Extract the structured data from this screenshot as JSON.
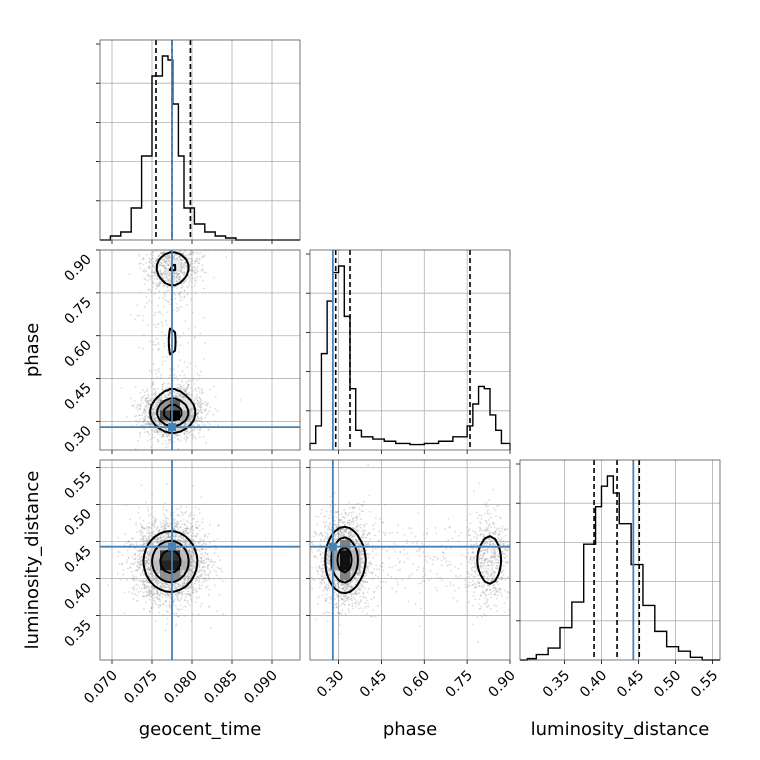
{
  "chart_data": {
    "type": "corner",
    "parameters": [
      {
        "name": "geocent_time",
        "label": "geocent_time",
        "range": [
          0.0685,
          0.0935
        ],
        "ticks": [
          0.07,
          0.075,
          0.08,
          0.085,
          0.09
        ],
        "tick_labels": [
          "0.070",
          "0.075",
          "0.080",
          "0.085",
          "0.090"
        ],
        "truth": 0.0775,
        "quantiles": [
          0.0755,
          0.0775,
          0.0798
        ],
        "histogram": {
          "bin_edges": [
            0.0685,
            0.0698,
            0.0711,
            0.0724,
            0.0737,
            0.075,
            0.0763,
            0.077,
            0.0776,
            0.0783,
            0.079,
            0.0803,
            0.0816,
            0.0829,
            0.0842,
            0.0855,
            0.0868,
            0.0935
          ],
          "counts": [
            0,
            1,
            2,
            8,
            21,
            41,
            46,
            45,
            34,
            21,
            8,
            4,
            2,
            1,
            0.5,
            0,
            0
          ]
        }
      },
      {
        "name": "phase",
        "label": "phase",
        "range": [
          0.2,
          0.9
        ],
        "ticks": [
          0.3,
          0.45,
          0.6,
          0.75,
          0.9
        ],
        "tick_labels": [
          "0.30",
          "0.45",
          "0.60",
          "0.75",
          "0.90"
        ],
        "truth": 0.28,
        "quantiles": [
          0.29,
          0.34,
          0.76
        ],
        "histogram": {
          "bin_edges": [
            0.2,
            0.22,
            0.24,
            0.26,
            0.28,
            0.3,
            0.32,
            0.34,
            0.36,
            0.38,
            0.42,
            0.46,
            0.5,
            0.55,
            0.6,
            0.65,
            0.7,
            0.75,
            0.77,
            0.79,
            0.81,
            0.83,
            0.85,
            0.87,
            0.9
          ],
          "counts": [
            0.3,
            1.1,
            4.4,
            6.8,
            8.1,
            8.4,
            6.1,
            2.8,
            0.9,
            0.6,
            0.5,
            0.4,
            0.3,
            0.25,
            0.3,
            0.4,
            0.6,
            1.1,
            2.1,
            2.9,
            2.8,
            1.6,
            0.9,
            0.3
          ]
        }
      },
      {
        "name": "luminosity_distance",
        "label": "luminosity_distance",
        "range": [
          0.29,
          0.56
        ],
        "ticks": [
          0.35,
          0.4,
          0.45,
          0.5,
          0.55
        ],
        "tick_labels": [
          "0.35",
          "0.40",
          "0.45",
          "0.50",
          "0.55"
        ],
        "truth": 0.443,
        "quantiles": [
          0.39,
          0.421,
          0.451
        ],
        "histogram": {
          "bin_edges": [
            0.29,
            0.3,
            0.312,
            0.328,
            0.344,
            0.36,
            0.376,
            0.392,
            0.4,
            0.408,
            0.416,
            0.424,
            0.44,
            0.456,
            0.472,
            0.488,
            0.504,
            0.52,
            0.536,
            0.56
          ],
          "counts": [
            0,
            0.4,
            1.6,
            3.5,
            9.5,
            17,
            34,
            45,
            51,
            54,
            49,
            40,
            28,
            16,
            8.4,
            3.9,
            2.6,
            0.8,
            0
          ]
        }
      }
    ],
    "posterior_2d": [
      {
        "x": "geocent_time",
        "y": "phase",
        "modes": [
          {
            "cx": 0.0776,
            "cy": 0.33,
            "sx": 0.0015,
            "sy": 0.035,
            "w": 0.62,
            "rot": 0.4
          },
          {
            "cx": 0.0776,
            "cy": 0.84,
            "sx": 0.0014,
            "sy": 0.035,
            "w": 0.26,
            "rot": 0.0
          },
          {
            "cx": 0.0775,
            "cy": 0.58,
            "sx": 0.0016,
            "sy": 0.18,
            "w": 0.12,
            "rot": 0.0
          }
        ]
      },
      {
        "x": "geocent_time",
        "y": "luminosity_distance",
        "modes": [
          {
            "cx": 0.0773,
            "cy": 0.423,
            "sx": 0.0018,
            "sy": 0.022,
            "w": 1.0,
            "rot": -0.1
          }
        ]
      },
      {
        "x": "phase",
        "y": "luminosity_distance",
        "modes": [
          {
            "cx": 0.32,
            "cy": 0.425,
            "sx": 0.035,
            "sy": 0.024,
            "w": 0.66,
            "rot": 0.0
          },
          {
            "cx": 0.83,
            "cy": 0.425,
            "sx": 0.03,
            "sy": 0.026,
            "w": 0.24,
            "rot": 0.0
          },
          {
            "cx": 0.57,
            "cy": 0.425,
            "sx": 0.16,
            "sy": 0.025,
            "w": 0.1,
            "rot": 0.0
          }
        ]
      }
    ],
    "truth_color": "#4682b4",
    "line_color": "#000000",
    "grid": true
  }
}
